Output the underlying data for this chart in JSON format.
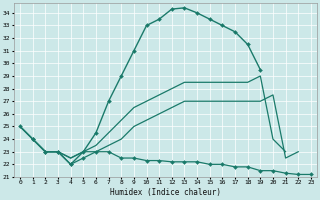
{
  "xlabel": "Humidex (Indice chaleur)",
  "ylabel": "",
  "xlim": [
    -0.5,
    23.5
  ],
  "ylim": [
    21,
    34.8
  ],
  "yticks": [
    21,
    22,
    23,
    24,
    25,
    26,
    27,
    28,
    29,
    30,
    31,
    32,
    33,
    34
  ],
  "xticks": [
    0,
    1,
    2,
    3,
    4,
    5,
    6,
    7,
    8,
    9,
    10,
    11,
    12,
    13,
    14,
    15,
    16,
    17,
    18,
    19,
    20,
    21,
    22,
    23
  ],
  "bg_color": "#cce8e8",
  "grid_color": "#ffffff",
  "line_color": "#1a7a6a",
  "lines": [
    {
      "x": [
        0,
        1,
        2,
        3,
        4,
        5,
        6,
        7,
        8,
        9,
        10,
        11,
        12,
        13,
        14,
        15,
        16,
        17,
        18,
        19
      ],
      "y": [
        25.0,
        24.0,
        23.0,
        23.0,
        22.0,
        23.0,
        24.5,
        27.0,
        29.0,
        31.0,
        33.0,
        33.5,
        34.3,
        34.4,
        34.0,
        33.5,
        33.0,
        32.5,
        31.5,
        29.5
      ],
      "has_marker": true,
      "markersize": 2.0,
      "linewidth": 1.0
    },
    {
      "x": [
        0,
        1,
        2,
        3,
        4,
        5,
        6,
        7,
        8,
        9,
        10,
        11,
        12,
        13,
        14,
        15,
        16,
        17,
        18,
        19,
        20,
        21
      ],
      "y": [
        25.0,
        24.0,
        23.0,
        23.0,
        22.5,
        23.0,
        23.5,
        24.5,
        25.5,
        26.5,
        27.0,
        27.5,
        28.0,
        28.5,
        28.5,
        28.5,
        28.5,
        28.5,
        28.5,
        29.0,
        24.0,
        23.0
      ],
      "has_marker": false,
      "markersize": 0,
      "linewidth": 0.9
    },
    {
      "x": [
        0,
        1,
        2,
        3,
        4,
        5,
        6,
        7,
        8,
        9,
        10,
        11,
        12,
        13,
        14,
        15,
        16,
        17,
        18,
        19,
        20,
        21,
        22
      ],
      "y": [
        25.0,
        24.0,
        23.0,
        23.0,
        22.5,
        23.0,
        23.0,
        23.5,
        24.0,
        25.0,
        25.5,
        26.0,
        26.5,
        27.0,
        27.0,
        27.0,
        27.0,
        27.0,
        27.0,
        27.0,
        27.5,
        22.5,
        23.0
      ],
      "has_marker": false,
      "markersize": 0,
      "linewidth": 0.9
    },
    {
      "x": [
        1,
        2,
        3,
        4,
        5,
        6,
        7,
        8,
        9,
        10,
        11,
        12,
        13,
        14,
        15,
        16,
        17,
        18,
        19,
        20,
        21,
        22,
        23
      ],
      "y": [
        24.0,
        23.0,
        23.0,
        22.0,
        22.5,
        23.0,
        23.0,
        22.5,
        22.5,
        22.3,
        22.3,
        22.2,
        22.2,
        22.2,
        22.0,
        22.0,
        21.8,
        21.8,
        21.5,
        21.5,
        21.3,
        21.2,
        21.2
      ],
      "has_marker": true,
      "markersize": 2.0,
      "linewidth": 0.9
    }
  ]
}
